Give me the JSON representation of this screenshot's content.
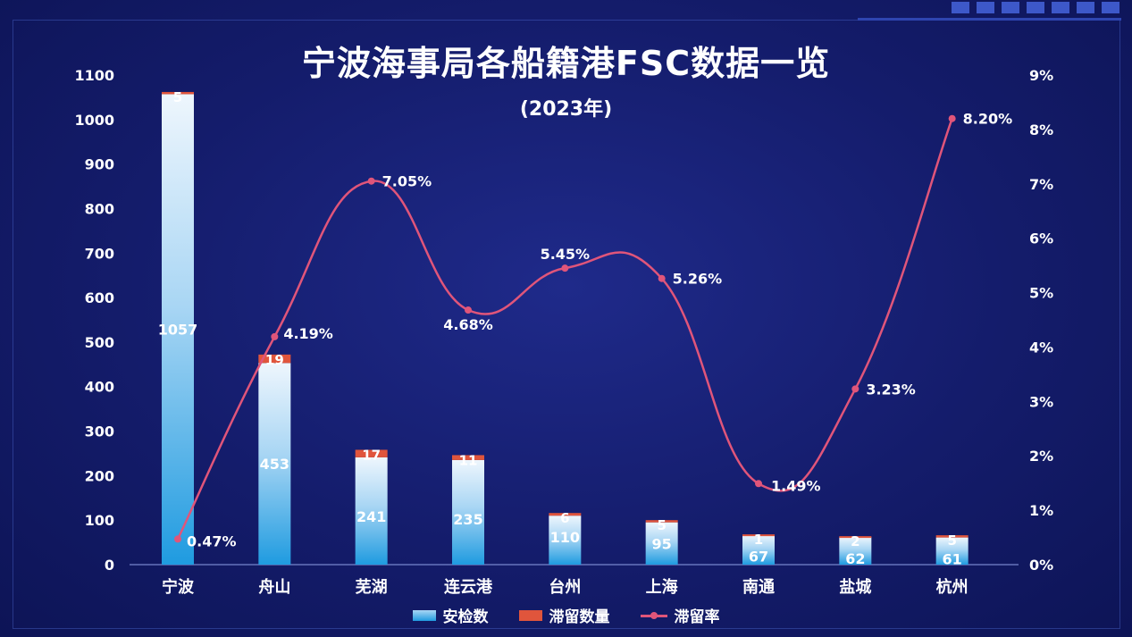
{
  "title": "宁波海事局各船籍港FSC数据一览",
  "subtitle": "(2023年)",
  "chart_data": {
    "type": "bar",
    "title": "宁波海事局各船籍港FSC数据一览",
    "subtitle": "(2023年)",
    "categories": [
      "宁波",
      "舟山",
      "芜湖",
      "连云港",
      "台州",
      "上海",
      "南通",
      "盐城",
      "杭州"
    ],
    "series": [
      {
        "name": "安检数",
        "type": "bar",
        "stack": "main",
        "color": "#35a4e6",
        "values": [
          1057,
          453,
          241,
          235,
          110,
          95,
          67,
          62,
          61
        ]
      },
      {
        "name": "滞留数量",
        "type": "bar",
        "stack": "main",
        "color": "#e0553c",
        "values": [
          5,
          19,
          17,
          11,
          6,
          5,
          1,
          2,
          5
        ]
      },
      {
        "name": "滞留率",
        "type": "line",
        "axis": "right",
        "color": "#e0557a",
        "values": [
          0.47,
          4.19,
          7.05,
          4.68,
          5.45,
          5.26,
          1.49,
          3.23,
          8.2
        ],
        "labels": [
          "0.47%",
          "4.19%",
          "7.05%",
          "4.68%",
          "5.45%",
          "5.26%",
          "1.49%",
          "3.23%",
          "8.20%"
        ]
      }
    ],
    "left_axis": {
      "ylim": [
        0,
        1100
      ],
      "ticks": [
        "0",
        "100",
        "200",
        "300",
        "400",
        "500",
        "600",
        "700",
        "800",
        "900",
        "1000",
        "1100"
      ]
    },
    "right_axis": {
      "ylim": [
        0,
        9
      ],
      "ticks": [
        "0%",
        "1%",
        "2%",
        "3%",
        "4%",
        "5%",
        "6%",
        "7%",
        "8%",
        "9%"
      ]
    },
    "grid": false,
    "legend": "bottom-center"
  },
  "legend": {
    "items": [
      "安检数",
      "滞留数量",
      "滞留率"
    ]
  }
}
